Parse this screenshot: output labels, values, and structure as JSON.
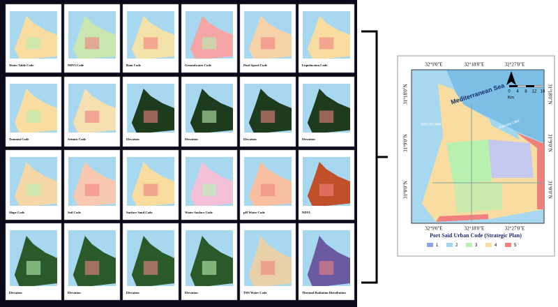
{
  "thumbnails": [
    {
      "caption": "Water Table Code"
    },
    {
      "caption": "NDVI Code"
    },
    {
      "caption": "Rain Code"
    },
    {
      "caption": "Groundwater Code"
    },
    {
      "caption": "Pixel Speed Code"
    },
    {
      "caption": "Liquefaction Code"
    },
    {
      "caption": "Tsunami Code"
    },
    {
      "caption": "Seismic Code"
    },
    {
      "caption": "Elevation"
    },
    {
      "caption": "Elevation"
    },
    {
      "caption": "Elevation"
    },
    {
      "caption": "Elevation"
    },
    {
      "caption": "Slope Code"
    },
    {
      "caption": "Soil Code"
    },
    {
      "caption": "Surface Sand Code"
    },
    {
      "caption": "Water Surface Code"
    },
    {
      "caption": "pH Water Code"
    },
    {
      "caption": "NDVI"
    },
    {
      "caption": "Elevation"
    },
    {
      "caption": "Elevation"
    },
    {
      "caption": "Elevation"
    },
    {
      "caption": "Elevation"
    },
    {
      "caption": "TDS Water Code"
    },
    {
      "caption": "Thermal Radiation Distribution"
    }
  ],
  "main_map": {
    "sea_label": "Mediterranean Sea",
    "lake_labels": [
      "Manzala lake",
      "Manzala Lake"
    ],
    "longitudes": [
      "32°9'0\"E",
      "32°18'0\"E",
      "32°27'0\"E"
    ],
    "latitudes": [
      "31°18'0\"N",
      "31°9'0\"N",
      "31°0'0\"N"
    ],
    "scale_ticks": [
      "0",
      "4",
      "8",
      "12",
      "16"
    ],
    "scale_unit": "Km",
    "legend_title": "Port Said Urban Code (Strategic Plan)",
    "legend": [
      {
        "label": "1",
        "color": "#8f9fe8"
      },
      {
        "label": "2",
        "color": "#9fd8f0"
      },
      {
        "label": "3",
        "color": "#b8f0b0"
      },
      {
        "label": "4",
        "color": "#f8dca0"
      },
      {
        "label": "5",
        "color": "#f08080"
      }
    ]
  }
}
